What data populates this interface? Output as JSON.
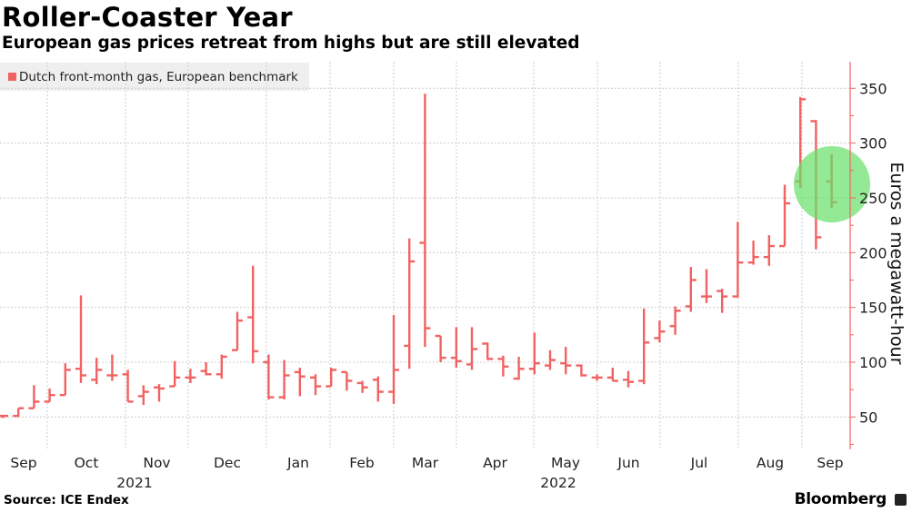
{
  "header": {
    "title": "Roller-Coaster Year",
    "subtitle": "European gas prices retreat from highs but are still elevated"
  },
  "footer": {
    "source": "Source: ICE Endex",
    "brand": "Bloomberg"
  },
  "colors": {
    "series": "#f26262",
    "highlight": "#66e066",
    "axis": "#f26262",
    "grid": "#cccccc"
  },
  "chart_data": {
    "type": "ohlc",
    "title": "Roller-Coaster Year",
    "subtitle": "European gas prices retreat from highs but are still elevated",
    "ylabel": "Euros a megawatt-hour",
    "ylim": [
      20,
      370
    ],
    "y_ticks": [
      50,
      100,
      150,
      200,
      250,
      300,
      350
    ],
    "y_axis_side": "right",
    "grid": true,
    "legend_position": "top-left",
    "series": [
      {
        "name": "Dutch front-month gas, European benchmark"
      }
    ],
    "x_month_labels": [
      "Sep",
      "Oct",
      "Nov",
      "Dec",
      "Jan",
      "Feb",
      "Mar",
      "Apr",
      "May",
      "Jun",
      "Jul",
      "Aug",
      "Sep"
    ],
    "x_year_labels": [
      "2021",
      "2022"
    ],
    "highlight": "circle around latest weeks (late Aug – Sep 2022)",
    "dates": [
      "2021-09-03",
      "2021-09-10",
      "2021-09-17",
      "2021-09-24",
      "2021-10-01",
      "2021-10-08",
      "2021-10-15",
      "2021-10-22",
      "2021-10-29",
      "2021-11-05",
      "2021-11-12",
      "2021-11-19",
      "2021-11-26",
      "2021-12-03",
      "2021-12-10",
      "2021-12-17",
      "2021-12-24",
      "2021-12-31",
      "2022-01-07",
      "2022-01-14",
      "2022-01-21",
      "2022-01-28",
      "2022-02-04",
      "2022-02-11",
      "2022-02-18",
      "2022-02-25",
      "2022-03-04",
      "2022-03-11",
      "2022-03-18",
      "2022-03-25",
      "2022-04-01",
      "2022-04-08",
      "2022-04-15",
      "2022-04-22",
      "2022-04-29",
      "2022-05-06",
      "2022-05-13",
      "2022-05-20",
      "2022-05-27",
      "2022-06-03",
      "2022-06-10",
      "2022-06-17",
      "2022-06-24",
      "2022-07-01",
      "2022-07-08",
      "2022-07-15",
      "2022-07-22",
      "2022-07-29",
      "2022-08-05",
      "2022-08-12",
      "2022-08-19",
      "2022-08-26",
      "2022-09-02",
      "2022-09-09"
    ],
    "open": [
      51,
      51,
      58,
      64,
      70,
      94,
      84,
      88,
      89,
      69,
      77,
      78,
      86,
      92,
      89,
      111,
      141,
      100,
      68,
      91,
      86,
      78,
      91,
      81,
      84,
      73,
      115,
      209,
      124,
      104,
      98,
      117,
      103,
      85,
      94,
      97,
      99,
      97,
      86,
      86,
      84,
      83,
      122,
      133,
      151,
      160,
      165,
      160,
      191,
      196,
      206,
      265,
      320,
      265
    ],
    "high": [
      52,
      58,
      79,
      76,
      99,
      161,
      104,
      107,
      93,
      79,
      80,
      101,
      94,
      100,
      107,
      146,
      188,
      107,
      102,
      95,
      89,
      95,
      91,
      83,
      87,
      143,
      213,
      345,
      124,
      132,
      132,
      118,
      106,
      105,
      127,
      111,
      114,
      98,
      89,
      95,
      92,
      149,
      138,
      151,
      187,
      185,
      167,
      228,
      211,
      216,
      262,
      342,
      321,
      290
    ],
    "low": [
      49,
      50,
      58,
      64,
      70,
      81,
      80,
      83,
      64,
      61,
      64,
      78,
      81,
      88,
      85,
      111,
      99,
      66,
      66,
      69,
      70,
      78,
      74,
      72,
      64,
      62,
      94,
      114,
      100,
      95,
      93,
      102,
      87,
      84,
      89,
      93,
      89,
      87,
      83,
      83,
      77,
      80,
      118,
      125,
      146,
      154,
      145,
      159,
      189,
      188,
      206,
      259,
      203,
      241
    ],
    "close": [
      51,
      58,
      64,
      70,
      93,
      88,
      93,
      88,
      64,
      73,
      76,
      86,
      86,
      89,
      105,
      138,
      110,
      68,
      88,
      87,
      78,
      93,
      83,
      77,
      73,
      93,
      192,
      131,
      104,
      101,
      112,
      103,
      96,
      94,
      99,
      102,
      97,
      88,
      86,
      83,
      82,
      118,
      128,
      147,
      175,
      160,
      160,
      191,
      196,
      206,
      245,
      340,
      214,
      246
    ]
  }
}
